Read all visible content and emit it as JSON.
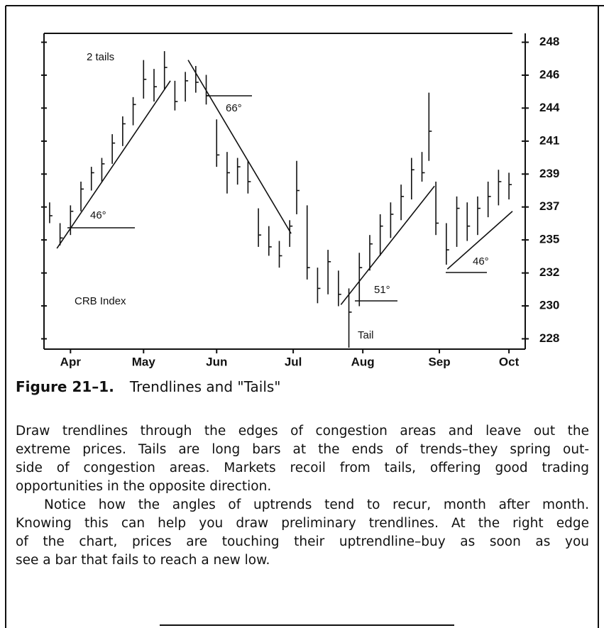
{
  "chart_data": {
    "type": "ohlc",
    "x": [
      1,
      4,
      7,
      10,
      13,
      16,
      19,
      22,
      25,
      28,
      31,
      34,
      37,
      40,
      43,
      46,
      49,
      52,
      55,
      58,
      61,
      64,
      67,
      70,
      72,
      75,
      78,
      81,
      84,
      87,
      90,
      93,
      96,
      99,
      102,
      105,
      108,
      110,
      112,
      115,
      118,
      121,
      124,
      127,
      130,
      133
    ],
    "high": [
      237.2,
      235.8,
      237.0,
      238.6,
      239.6,
      240.2,
      241.8,
      243.0,
      244.3,
      246.8,
      246.2,
      247.4,
      245.4,
      246.0,
      246.4,
      245.8,
      242.8,
      240.6,
      240.2,
      240.0,
      236.8,
      235.6,
      234.6,
      236.0,
      240.0,
      237.0,
      232.8,
      234.0,
      232.6,
      231.4,
      233.8,
      235.0,
      236.4,
      237.2,
      238.4,
      240.2,
      240.6,
      244.6,
      238.6,
      235.8,
      237.6,
      237.2,
      237.6,
      238.6,
      239.4,
      239.2
    ],
    "low": [
      235.8,
      234.3,
      235.0,
      236.6,
      238.0,
      238.6,
      239.8,
      241.0,
      242.4,
      244.2,
      244.0,
      244.8,
      243.4,
      244.0,
      244.6,
      243.8,
      239.6,
      237.8,
      238.4,
      237.8,
      234.2,
      233.6,
      232.8,
      234.2,
      236.4,
      232.0,
      230.4,
      231.0,
      230.2,
      227.4,
      230.2,
      232.6,
      233.6,
      234.8,
      236.0,
      237.4,
      238.6,
      240.0,
      235.0,
      233.0,
      234.2,
      234.6,
      235.0,
      236.2,
      237.0,
      237.4
    ],
    "close": [
      236.3,
      234.8,
      236.6,
      238.1,
      239.2,
      239.8,
      241.2,
      242.5,
      243.8,
      245.5,
      245.0,
      246.3,
      244.0,
      245.4,
      245.3,
      244.4,
      240.4,
      239.2,
      239.6,
      238.6,
      235.0,
      234.2,
      233.6,
      235.6,
      238.0,
      232.8,
      231.4,
      233.2,
      231.0,
      229.8,
      232.8,
      234.4,
      235.6,
      236.4,
      237.6,
      239.4,
      239.2,
      242.0,
      235.8,
      234.0,
      236.8,
      235.6,
      236.8,
      237.6,
      238.6,
      238.4
    ],
    "xlim": [
      0,
      134
    ],
    "xticks": [
      {
        "value": 7,
        "label": "Apr"
      },
      {
        "value": 28,
        "label": "May"
      },
      {
        "value": 49,
        "label": "Jun"
      },
      {
        "value": 71,
        "label": "Jul"
      },
      {
        "value": 91,
        "label": "Aug"
      },
      {
        "value": 113,
        "label": "Sep"
      },
      {
        "value": 133,
        "label": "Oct"
      }
    ],
    "ylim": [
      227.4,
      248.6
    ],
    "yticks": [
      248,
      {
        "value": 245.78,
        "label": "246"
      },
      {
        "value": 243.56,
        "label": "244"
      },
      {
        "value": 241.33,
        "label": "241"
      },
      {
        "value": 239.11,
        "label": "239"
      },
      {
        "value": 236.89,
        "label": "237"
      },
      {
        "value": 234.67,
        "label": "235"
      },
      {
        "value": 232.44,
        "label": "232"
      },
      {
        "value": 230.22,
        "label": "230"
      },
      228
    ],
    "trendlines": [
      {
        "x": [
          3.1,
          35.7
        ],
        "y": [
          234.1,
          245.4
        ]
      },
      {
        "x": [
          40.8,
          70.4
        ],
        "y": [
          246.8,
          235.1
        ]
      },
      {
        "x": [
          84.7,
          111.6
        ],
        "y": [
          230.3,
          238.3
        ]
      },
      {
        "x": [
          115.3,
          134
        ],
        "y": [
          232.7,
          236.6
        ]
      }
    ],
    "annotations": [
      "2 tails",
      "66°",
      "46°",
      "CRB Index",
      "51°",
      "Tail",
      "46°"
    ],
    "color": "#111111"
  },
  "caption": {
    "number": "Figure 21–1.",
    "title": "Trendlines and \"Tails\""
  },
  "paragraphs": [
    [
      "Draw trendlines through the edges of congestion areas and leave out the",
      "extreme prices. Tails are long bars at the ends of trends–they spring out-",
      "side of congestion areas. Markets recoil from tails, offering good trading",
      "opportunities in the opposite direction."
    ],
    [
      "Notice how the angles of uptrends tend to recur, month after month.",
      "Knowing this can help you draw preliminary trendlines. At the right edge",
      "of the chart, prices are touching their uptrendline–buy as soon as you",
      "see a bar that fails to reach a new low."
    ]
  ]
}
